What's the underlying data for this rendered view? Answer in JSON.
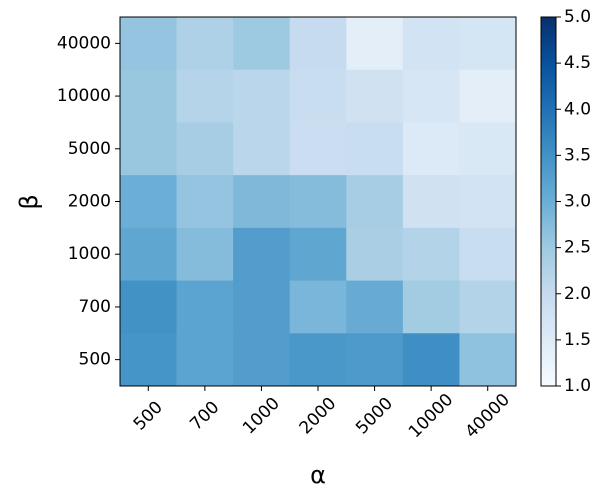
{
  "chart_data": {
    "type": "heatmap",
    "colormap": "Blues",
    "xlabel": "α",
    "ylabel": "β",
    "x_categories": [
      "500",
      "700",
      "1000",
      "2000",
      "5000",
      "10000",
      "40000"
    ],
    "y_categories": [
      "40000",
      "10000",
      "5000",
      "2000",
      "1000",
      "700",
      "500"
    ],
    "values": [
      [
        2.6,
        2.3,
        2.5,
        2.0,
        1.4,
        1.75,
        1.7
      ],
      [
        2.55,
        2.2,
        2.15,
        1.95,
        1.8,
        1.65,
        1.4
      ],
      [
        2.55,
        2.4,
        2.15,
        1.9,
        1.95,
        1.55,
        1.6
      ],
      [
        3.0,
        2.6,
        2.8,
        2.75,
        2.4,
        1.8,
        1.75
      ],
      [
        3.15,
        2.75,
        3.3,
        3.15,
        2.35,
        2.25,
        1.95
      ],
      [
        3.5,
        3.2,
        3.3,
        2.85,
        3.05,
        2.45,
        2.25
      ],
      [
        3.45,
        3.2,
        3.3,
        3.4,
        3.35,
        3.55,
        2.65
      ]
    ],
    "zlim": [
      1,
      5
    ],
    "zticks": [
      {
        "value": 1,
        "label": "1.0"
      },
      1.5,
      {
        "value": 2,
        "label": "2.0"
      },
      2.5,
      {
        "value": 3,
        "label": "3.0"
      },
      3.5,
      {
        "value": 4,
        "label": "4.0"
      },
      4.5,
      {
        "value": 5,
        "label": "5.0"
      }
    ]
  }
}
